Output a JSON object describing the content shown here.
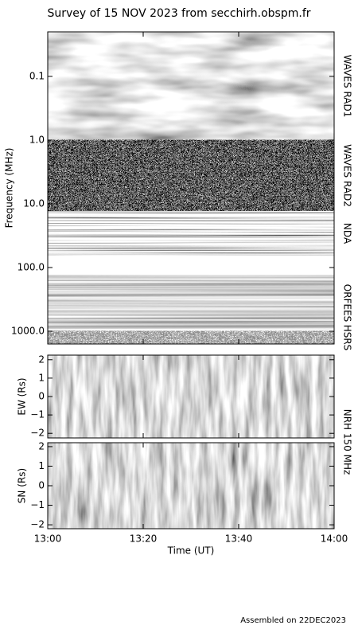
{
  "title": "Survey of 15 NOV 2023 from secchirh.obspm.fr",
  "footer": "Assembled on 22DEC2023",
  "xaxis": {
    "label": "Time (UT)",
    "xlim": [
      "13:00",
      "14:00"
    ],
    "xticks": [
      "13:00",
      "13:20",
      "13:40",
      "14:00"
    ]
  },
  "chart_data": [
    {
      "type": "heatmap",
      "ylabel": "Frequency (MHz)",
      "log": true,
      "inverted": true,
      "ylim": [
        0.02,
        1585
      ],
      "yticks": [
        0.1,
        {
          "value": 1,
          "label": "1.0"
        },
        {
          "value": 10,
          "label": "10.0"
        },
        {
          "value": 100,
          "label": "100.0"
        },
        {
          "value": 1000,
          "label": "1000.0"
        }
      ],
      "bands": [
        {
          "name": "WAVES RAD1",
          "range": [
            0.02,
            1
          ]
        },
        {
          "name": "WAVES RAD2",
          "range": [
            1,
            13
          ]
        },
        {
          "name": "NDA",
          "range": [
            13,
            65
          ]
        },
        {
          "name": "ORFEES",
          "range": [
            130,
            1000
          ]
        },
        {
          "name": "HSRS",
          "range": [
            1000,
            1585
          ]
        }
      ]
    },
    {
      "type": "image",
      "ylabel": "EW (Rs)",
      "instrument": "NRH 150 MHz",
      "ylim": [
        -2.25,
        2.25
      ],
      "yticks": [
        2,
        1,
        0,
        {
          "value": -1,
          "label": "−1"
        },
        {
          "value": -2,
          "label": "−2"
        }
      ]
    },
    {
      "type": "image",
      "ylabel": "SN (Rs)",
      "ylim": [
        -2.2,
        2.2
      ],
      "yticks": [
        2,
        1,
        0,
        {
          "value": -1,
          "label": "−1"
        },
        {
          "value": -2,
          "label": "−2"
        }
      ]
    }
  ]
}
